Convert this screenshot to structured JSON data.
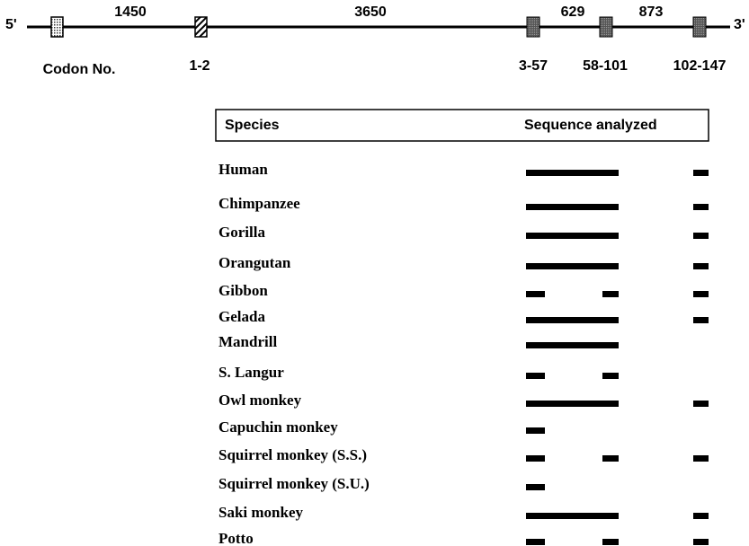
{
  "gene_map": {
    "five_prime": "5'",
    "three_prime": "3'",
    "distances": [
      "1450",
      "3650",
      "629",
      "873"
    ],
    "codon_label": "Codon No.",
    "codons": [
      "1-2",
      "3-57",
      "58-101",
      "102-147"
    ]
  },
  "table": {
    "header": [
      "Species",
      "Sequence analyzed"
    ],
    "species": [
      "Human",
      "Chimpanzee",
      "Gorilla",
      "Orangutan",
      "Gibbon",
      "Gelada",
      "Mandrill",
      "S. Langur",
      "Owl monkey",
      "Capuchin monkey",
      "Squirrel monkey (S.S.)",
      "Squirrel monkey (S.U.)",
      "Saki monkey",
      "Potto"
    ]
  }
}
